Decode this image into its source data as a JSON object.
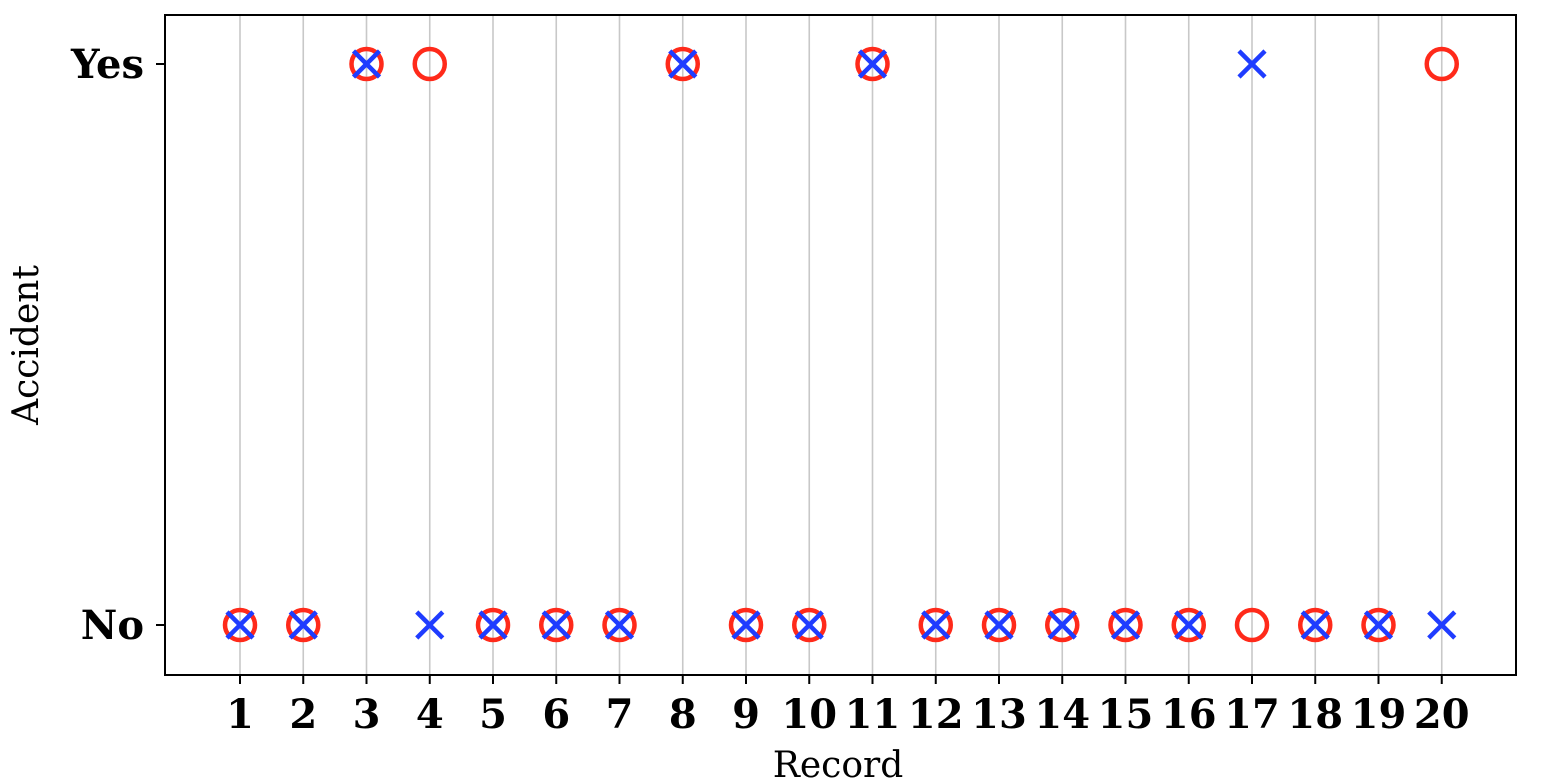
{
  "chart_data": {
    "type": "scatter",
    "title": "",
    "xlabel": "Record",
    "ylabel": "Accident",
    "x": [
      1,
      2,
      3,
      4,
      5,
      6,
      7,
      8,
      9,
      10,
      11,
      12,
      13,
      14,
      15,
      16,
      17,
      18,
      19,
      20
    ],
    "y_categories": [
      "No",
      "Yes"
    ],
    "grid": "vertical",
    "series": [
      {
        "marker": "o",
        "color": "#ff2a1a",
        "values": [
          "No",
          "No",
          "Yes",
          "Yes",
          "No",
          "No",
          "No",
          "Yes",
          "No",
          "No",
          "Yes",
          "No",
          "No",
          "No",
          "No",
          "No",
          "No",
          "No",
          "No",
          "Yes"
        ]
      },
      {
        "marker": "x",
        "color": "#1f3cff",
        "values": [
          "No",
          "No",
          "Yes",
          "No",
          "No",
          "No",
          "No",
          "Yes",
          "No",
          "No",
          "Yes",
          "No",
          "No",
          "No",
          "No",
          "No",
          "Yes",
          "No",
          "No",
          "No"
        ]
      }
    ]
  }
}
